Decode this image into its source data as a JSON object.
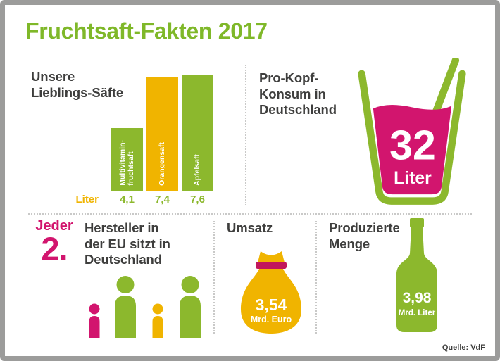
{
  "title": "Fruchtsaft-Fakten 2017",
  "chart_data": {
    "type": "bar",
    "title": "Unsere\nLieblings-Säfte",
    "unit_label": "Liter",
    "categories": [
      "Multivitamin-\nfruchtsaft",
      "Orangensaft",
      "Apfelsaft"
    ],
    "values": [
      4.1,
      7.4,
      7.6
    ],
    "value_labels": [
      "4,1",
      "7,4",
      "7,6"
    ],
    "bar_colors": [
      "#8cb82d",
      "#f0b400",
      "#8cb82d"
    ],
    "ylim": [
      0,
      7.6
    ],
    "legend": "none",
    "grid": "off"
  },
  "per_capita": {
    "heading": "Pro-Kopf-\nKonsum in\nDeutschland",
    "value": "32",
    "unit": "Liter"
  },
  "manufacturers": {
    "prefix": "Jeder",
    "number": "2.",
    "text": "Hersteller in\nder EU sitzt in\nDeutschland"
  },
  "revenue": {
    "heading": "Umsatz",
    "value": "3,54",
    "unit": "Mrd. Euro"
  },
  "production": {
    "heading": "Produzierte\nMenge",
    "value": "3,98",
    "unit": "Mrd. Liter"
  },
  "source": "Quelle: VdF",
  "colors": {
    "green": "#8cb82d",
    "yellow": "#f0b400",
    "magenta": "#d2156e",
    "text_gray": "#3e3e3d",
    "frame_gray": "#9c9c9b",
    "dotted_gray": "#c9c9c8"
  }
}
